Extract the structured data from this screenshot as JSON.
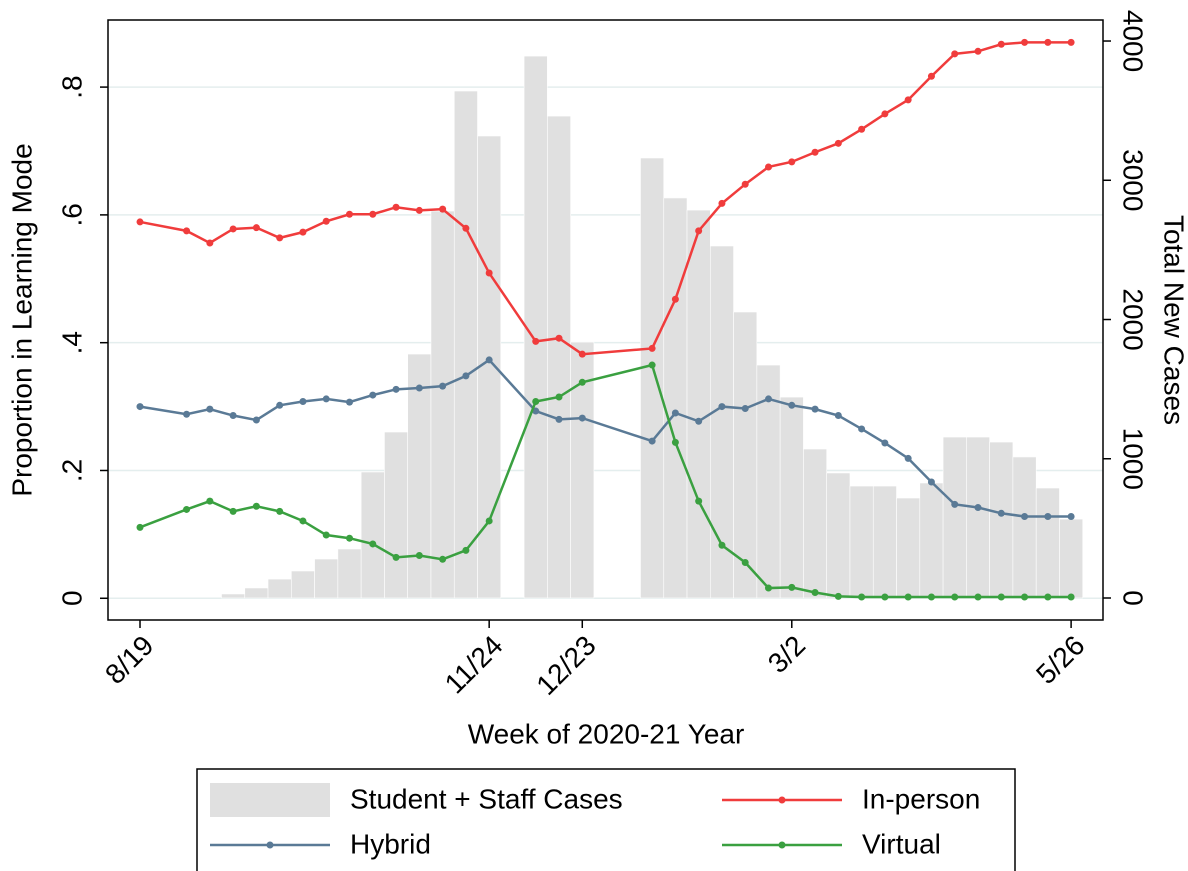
{
  "chart_data": {
    "type": "line",
    "xlabel": "Week of 2020-21 Year",
    "ylabel": "Proportion in Learning Mode",
    "y2label": "Total New Cases",
    "xlim": [
      -1.375,
      41.37
    ],
    "ylim": [
      -0.034,
      0.905
    ],
    "y2lim": [
      -158,
      4151
    ],
    "xticks": [
      {
        "value": 0,
        "label": "8/19"
      },
      {
        "value": 15,
        "label": "11/24"
      },
      {
        "value": 19,
        "label": "12/23"
      },
      {
        "value": 28,
        "label": "3/2"
      },
      {
        "value": 40,
        "label": "5/26"
      }
    ],
    "yticks": [
      0,
      {
        "value": 0.2,
        "label": ".2"
      },
      {
        "value": 0.4,
        "label": ".4"
      },
      {
        "value": 0.6,
        "label": ".6"
      },
      {
        "value": 0.8,
        "label": ".8"
      }
    ],
    "y2ticks": [
      0,
      1000,
      2000,
      3000,
      4000
    ],
    "grid": true,
    "legend": "bottom",
    "series": [
      {
        "name": "Student + Staff Cases",
        "type": "bar",
        "axis": "y2",
        "color": "#e0e0e0",
        "x": [
          4,
          5,
          6,
          7,
          8,
          9,
          10,
          11,
          12,
          13,
          14,
          15,
          17,
          18,
          19,
          22,
          23,
          24,
          25,
          26,
          27,
          28,
          29,
          30,
          31,
          32,
          33,
          34,
          35,
          36,
          37,
          38,
          39,
          40
        ],
        "values": [
          29,
          72,
          136,
          194,
          280,
          352,
          905,
          1192,
          1752,
          2779,
          3641,
          3318,
          3892,
          3461,
          1838,
          3160,
          2873,
          2786,
          2528,
          2054,
          1673,
          1443,
          1070,
          898,
          804,
          804,
          718,
          826,
          1156,
          1156,
          1120,
          1013,
          790,
          567
        ]
      },
      {
        "name": "In-person",
        "color": "#f03c3c",
        "x": [
          0,
          2,
          3,
          4,
          5,
          6,
          7,
          8,
          9,
          10,
          11,
          12,
          13,
          14,
          15,
          17,
          18,
          19,
          22,
          23,
          24,
          25,
          26,
          27,
          28,
          29,
          30,
          31,
          32,
          33,
          34,
          35,
          36,
          37,
          38,
          39,
          40
        ],
        "values": [
          0.589,
          0.575,
          0.556,
          0.578,
          0.58,
          0.564,
          0.573,
          0.59,
          0.601,
          0.601,
          0.612,
          0.607,
          0.609,
          0.579,
          0.509,
          0.402,
          0.407,
          0.382,
          0.391,
          0.468,
          0.575,
          0.618,
          0.648,
          0.675,
          0.683,
          0.698,
          0.712,
          0.734,
          0.758,
          0.78,
          0.817,
          0.852,
          0.856,
          0.867,
          0.87,
          0.87,
          0.87
        ]
      },
      {
        "name": "Hybrid",
        "color": "#5a7a96",
        "x": [
          0,
          2,
          3,
          4,
          5,
          6,
          7,
          8,
          9,
          10,
          11,
          12,
          13,
          14,
          15,
          17,
          18,
          19,
          22,
          23,
          24,
          25,
          26,
          27,
          28,
          29,
          30,
          31,
          32,
          33,
          34,
          35,
          36,
          37,
          38,
          39,
          40
        ],
        "values": [
          0.3,
          0.288,
          0.296,
          0.286,
          0.279,
          0.302,
          0.308,
          0.312,
          0.307,
          0.318,
          0.327,
          0.329,
          0.332,
          0.348,
          0.373,
          0.293,
          0.28,
          0.282,
          0.246,
          0.29,
          0.277,
          0.3,
          0.297,
          0.312,
          0.302,
          0.296,
          0.286,
          0.265,
          0.243,
          0.219,
          0.182,
          0.147,
          0.142,
          0.133,
          0.128,
          0.128,
          0.128
        ]
      },
      {
        "name": "Virtual",
        "color": "#3aa040",
        "x": [
          0,
          2,
          3,
          4,
          5,
          6,
          7,
          8,
          9,
          10,
          11,
          12,
          13,
          14,
          15,
          17,
          18,
          19,
          22,
          23,
          24,
          25,
          26,
          27,
          28,
          29,
          30,
          31,
          32,
          33,
          34,
          35,
          36,
          37,
          38,
          39,
          40
        ],
        "values": [
          0.111,
          0.139,
          0.152,
          0.136,
          0.144,
          0.136,
          0.121,
          0.099,
          0.094,
          0.085,
          0.064,
          0.067,
          0.061,
          0.075,
          0.121,
          0.308,
          0.315,
          0.338,
          0.365,
          0.244,
          0.152,
          0.083,
          0.056,
          0.016,
          0.017,
          0.009,
          0.003,
          0.002,
          0.002,
          0.002,
          0.002,
          0.002,
          0.002,
          0.002,
          0.002,
          0.002,
          0.002
        ]
      }
    ]
  }
}
